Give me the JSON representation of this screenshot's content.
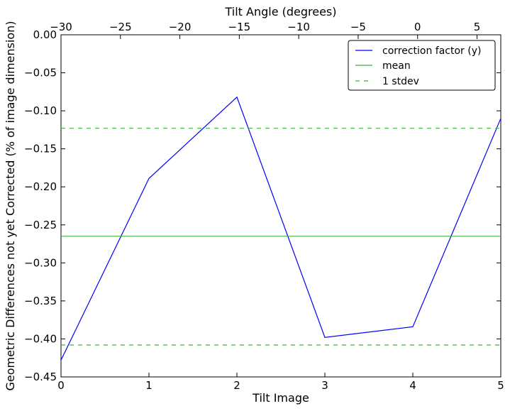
{
  "chart_data": {
    "type": "line",
    "xlabel": "Tilt Image",
    "ylabel": "Geometric Differences not yet Corrected (% of image dimension)",
    "top_xlabel": "Tilt Angle (degrees)",
    "xlim": [
      0,
      5
    ],
    "ylim": [
      -0.45,
      0.0
    ],
    "top_xlim": [
      -30,
      7
    ],
    "x_ticks": [
      0,
      1,
      2,
      3,
      4,
      5
    ],
    "x_tick_labels": [
      "0",
      "1",
      "2",
      "3",
      "4",
      "5"
    ],
    "y_ticks": [
      0.0,
      -0.05,
      -0.1,
      -0.15,
      -0.2,
      -0.25,
      -0.3,
      -0.35,
      -0.4,
      -0.45
    ],
    "y_tick_labels": [
      "0.00",
      "−0.05",
      "−0.10",
      "−0.15",
      "−0.20",
      "−0.25",
      "−0.30",
      "−0.35",
      "−0.40",
      "−0.45"
    ],
    "top_ticks": [
      -30,
      -25,
      -20,
      -15,
      -10,
      -5,
      0,
      5
    ],
    "top_tick_labels": [
      "−30",
      "−25",
      "−20",
      "−15",
      "−10",
      "−5",
      "0",
      "5"
    ],
    "series": [
      {
        "name": "correction factor (y)",
        "color": "#0000ff",
        "style": "solid",
        "x": [
          0,
          1,
          2,
          3,
          4,
          5
        ],
        "values": [
          -0.428,
          -0.189,
          -0.082,
          -0.398,
          -0.384,
          -0.11
        ]
      },
      {
        "name": "mean",
        "color": "#3cb43c",
        "style": "solid",
        "x": [
          0,
          5
        ],
        "values": [
          -0.265,
          -0.265
        ]
      },
      {
        "name": "1 stdev",
        "color": "#3cb43c",
        "style": "dashed",
        "x": [
          0,
          5
        ],
        "values": [
          -0.123,
          -0.123
        ]
      },
      {
        "name": "",
        "color": "#3cb43c",
        "style": "dashed",
        "x": [
          0,
          5
        ],
        "values": [
          -0.408,
          -0.408
        ]
      }
    ],
    "legend": {
      "placement": "top-right",
      "entries": [
        "correction factor (y)",
        "mean",
        "1 stdev"
      ]
    },
    "grid": false
  }
}
